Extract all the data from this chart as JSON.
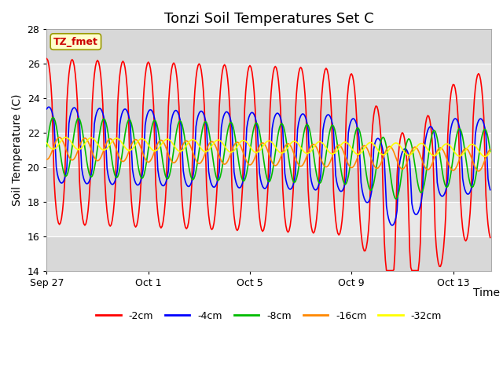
{
  "title": "Tonzi Soil Temperatures Set C",
  "xlabel": "Time",
  "ylabel": "Soil Temperature (C)",
  "ylim": [
    14,
    28
  ],
  "xlim_days": [
    0,
    17.5
  ],
  "yticks": [
    14,
    16,
    18,
    20,
    22,
    24,
    26,
    28
  ],
  "colors": {
    "-2cm": "#ff0000",
    "-4cm": "#0000ff",
    "-8cm": "#00bb00",
    "-16cm": "#ff8800",
    "-32cm": "#ffff00"
  },
  "legend_label_box": "TZ_fmet",
  "legend_box_bg": "#ffffcc",
  "legend_box_edge": "#999900",
  "title_fontsize": 13,
  "axis_label_fontsize": 10,
  "tick_fontsize": 9,
  "xtick_labels": [
    "Sep 27",
    "Oct 1",
    "Oct 5",
    "Oct 9",
    "Oct 13"
  ],
  "xtick_positions": [
    0,
    4,
    8,
    12,
    16
  ],
  "band_colors": [
    "#d8d8d8",
    "#e8e8e8"
  ],
  "linewidth": 1.2
}
